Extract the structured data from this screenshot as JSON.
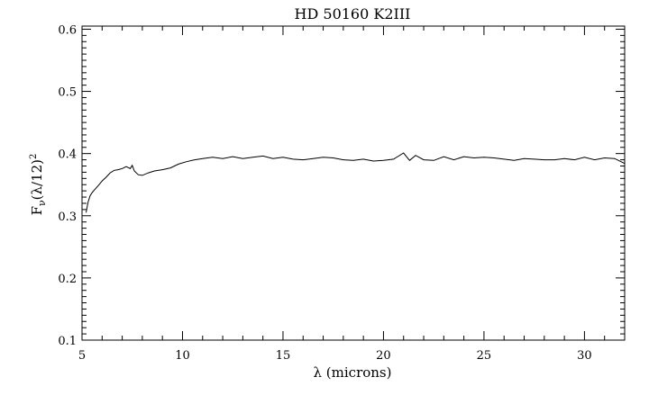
{
  "chart_data": {
    "type": "line",
    "title": "HD 50160 K2III",
    "xlabel": "λ (microns)",
    "ylabel": "F_ν(λ/12)²",
    "ylabel_parts": {
      "f": "F",
      "sub": "ν",
      "mid": "(λ/12)",
      "sup": "2"
    },
    "xlim": [
      5,
      32
    ],
    "ylim": [
      0.1,
      0.605
    ],
    "x_ticks": [
      5,
      10,
      15,
      20,
      25,
      30
    ],
    "y_ticks": [
      0.1,
      0.2,
      0.3,
      0.4,
      0.5,
      0.6
    ],
    "x_tick_labels": [
      "5",
      "10",
      "15",
      "20",
      "25",
      "30"
    ],
    "y_tick_labels": [
      "0.1",
      "0.2",
      "0.3",
      "0.4",
      "0.5",
      "0.6"
    ],
    "grid": false,
    "line_color": "#000000",
    "series": [
      {
        "x": [
          5.2,
          5.3,
          5.4,
          5.5,
          5.6,
          5.8,
          6.0,
          6.2,
          6.4,
          6.6,
          6.8,
          7.0,
          7.2,
          7.4,
          7.5,
          7.6,
          7.8,
          8.0,
          8.3,
          8.6,
          9.0,
          9.4,
          9.8,
          10.2,
          10.6,
          11.0,
          11.5,
          12.0,
          12.5,
          13.0,
          13.5,
          14.0,
          14.5,
          15.0,
          15.5,
          16.0,
          16.5,
          17.0,
          17.5,
          18.0,
          18.5,
          19.0,
          19.5,
          20.0,
          20.5,
          21.0,
          21.3,
          21.6,
          22.0,
          22.5,
          23.0,
          23.5,
          24.0,
          24.5,
          25.0,
          25.5,
          26.0,
          26.5,
          27.0,
          27.5,
          28.0,
          28.5,
          29.0,
          29.5,
          30.0,
          30.5,
          31.0,
          31.5,
          32.0
        ],
        "y": [
          0.305,
          0.322,
          0.332,
          0.337,
          0.341,
          0.348,
          0.356,
          0.362,
          0.369,
          0.373,
          0.374,
          0.376,
          0.379,
          0.376,
          0.381,
          0.372,
          0.366,
          0.365,
          0.369,
          0.372,
          0.374,
          0.377,
          0.383,
          0.387,
          0.39,
          0.392,
          0.394,
          0.392,
          0.395,
          0.392,
          0.394,
          0.396,
          0.392,
          0.394,
          0.391,
          0.39,
          0.392,
          0.394,
          0.393,
          0.39,
          0.389,
          0.391,
          0.388,
          0.389,
          0.391,
          0.401,
          0.389,
          0.397,
          0.39,
          0.389,
          0.395,
          0.39,
          0.395,
          0.393,
          0.394,
          0.393,
          0.391,
          0.389,
          0.392,
          0.391,
          0.39,
          0.39,
          0.392,
          0.39,
          0.394,
          0.39,
          0.393,
          0.392,
          0.384
        ]
      }
    ]
  }
}
